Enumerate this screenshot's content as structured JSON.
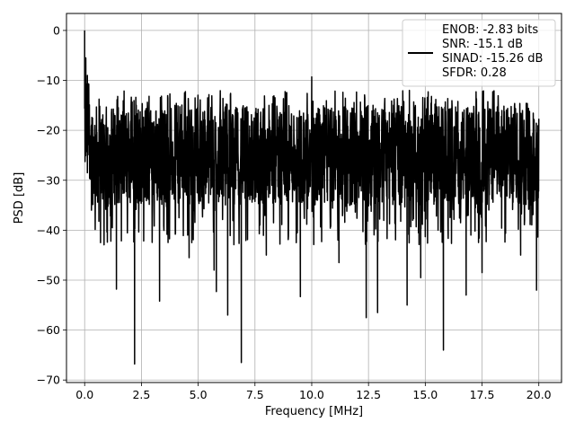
{
  "chart_data": {
    "type": "line",
    "xlabel": "Frequency [MHz]",
    "ylabel": "PSD [dB]",
    "xlim": [
      -0.8,
      21.0
    ],
    "ylim": [
      -70.5,
      3.4
    ],
    "xticks": [
      0.0,
      2.5,
      5.0,
      7.5,
      10.0,
      12.5,
      15.0,
      17.5,
      20.0
    ],
    "xtick_labels": [
      "0.0",
      "2.5",
      "5.0",
      "7.5",
      "10.0",
      "12.5",
      "15.0",
      "17.5",
      "20.0"
    ],
    "yticks": [
      0,
      -10,
      -20,
      -30,
      -40,
      -50,
      -60,
      -70
    ],
    "ytick_labels": [
      "0",
      "−10",
      "−20",
      "−30",
      "−40",
      "−50",
      "−60",
      "−70"
    ],
    "grid": true,
    "legend_position": "top-right",
    "series": [
      {
        "name": "ENOB: -2.83 bits\nSNR: -15.1 dB\nSINAD: -15.26 dB\nSFDR: 0.28",
        "color": "#000000",
        "noise_band_db": [
          -35,
          -15
        ],
        "peak_points": [
          {
            "x": 0.0,
            "y": 0.0
          },
          {
            "x": 0.05,
            "y": -5.5
          },
          {
            "x": 0.12,
            "y": -9.0
          },
          {
            "x": 10.0,
            "y": -9.3
          },
          {
            "x": 4.4,
            "y": -12.5
          }
        ],
        "dip_points": [
          {
            "x": 0.12,
            "y": -28.5
          },
          {
            "x": 0.3,
            "y": -36.0
          },
          {
            "x": 0.7,
            "y": -42.5
          },
          {
            "x": 1.4,
            "y": -51.8
          },
          {
            "x": 2.2,
            "y": -66.8
          },
          {
            "x": 3.3,
            "y": -54.2
          },
          {
            "x": 4.6,
            "y": -45.5
          },
          {
            "x": 5.7,
            "y": -48.0
          },
          {
            "x": 5.8,
            "y": -52.3
          },
          {
            "x": 6.3,
            "y": -57.0
          },
          {
            "x": 6.9,
            "y": -66.5
          },
          {
            "x": 8.0,
            "y": -45.0
          },
          {
            "x": 9.5,
            "y": -53.3
          },
          {
            "x": 11.2,
            "y": -46.5
          },
          {
            "x": 12.4,
            "y": -57.5
          },
          {
            "x": 12.9,
            "y": -56.5
          },
          {
            "x": 14.2,
            "y": -55.0
          },
          {
            "x": 14.8,
            "y": -49.5
          },
          {
            "x": 15.8,
            "y": -64.0
          },
          {
            "x": 16.8,
            "y": -53.0
          },
          {
            "x": 17.5,
            "y": -48.5
          },
          {
            "x": 19.2,
            "y": -45.0
          },
          {
            "x": 19.9,
            "y": -52.0
          }
        ]
      }
    ]
  }
}
